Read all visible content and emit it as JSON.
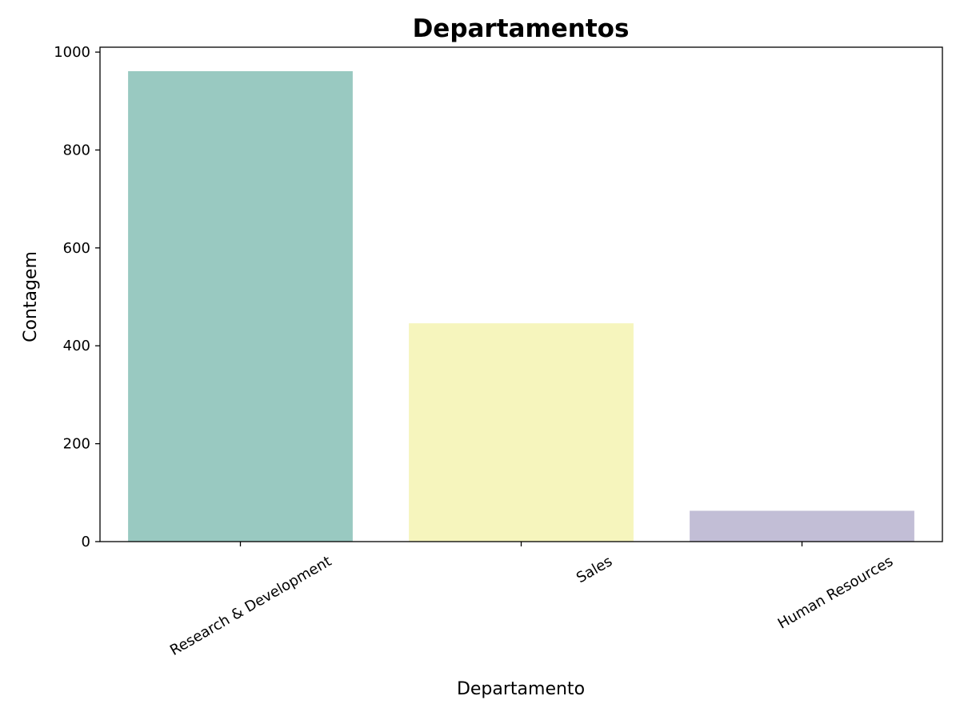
{
  "chart_data": {
    "type": "bar",
    "title": "Departamentos",
    "xlabel": "Departamento",
    "ylabel": "Contagem",
    "categories": [
      "Research & Development",
      "Sales",
      "Human Resources"
    ],
    "values": [
      961,
      446,
      63
    ],
    "colors": [
      "#99c9c1",
      "#f6f5bd",
      "#c2bed6"
    ],
    "ylim": [
      0,
      1010
    ],
    "yticks": [
      0,
      200,
      400,
      600,
      800,
      1000
    ],
    "ytick_labels": [
      "0",
      "200",
      "400",
      "600",
      "800",
      "1000"
    ],
    "xtick_rotation": -30,
    "grid": false
  }
}
